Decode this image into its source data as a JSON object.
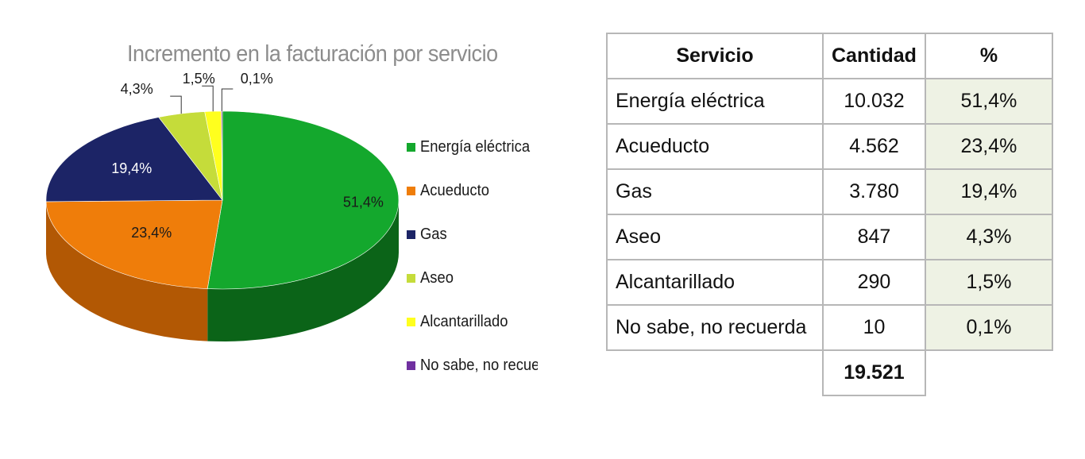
{
  "chart_data": {
    "type": "pie",
    "title": "Incremento en la facturación por servicio",
    "slices": [
      {
        "label": "Energía eléctrica",
        "value": 51.4,
        "data_label": "51,4%",
        "color": "#14a82d",
        "dark": "#0b6418"
      },
      {
        "label": "Acueducto",
        "value": 23.4,
        "data_label": "23,4%",
        "color": "#ef7d0a",
        "dark": "#b25804"
      },
      {
        "label": "Gas",
        "value": 19.4,
        "data_label": "19,4%",
        "color": "#1c2466",
        "dark": "#0e123a"
      },
      {
        "label": "Aseo",
        "value": 4.3,
        "data_label": "4,3%",
        "color": "#c5dc3a",
        "dark": "#8fa126"
      },
      {
        "label": "Alcantarillado",
        "value": 1.5,
        "data_label": "1,5%",
        "color": "#ffff1e",
        "dark": "#c7c700"
      },
      {
        "label": "No sabe, no recuerda",
        "value": 0.1,
        "data_label": "0,1%",
        "color": "#7030a0",
        "dark": "#4a1f6b"
      }
    ],
    "legend_position": "right"
  },
  "legend": {
    "items": [
      {
        "label": "Energía eléctrica",
        "color": "#14a82d"
      },
      {
        "label": "Acueducto",
        "color": "#ef7d0a"
      },
      {
        "label": "Gas",
        "color": "#1c2466"
      },
      {
        "label": "Aseo",
        "color": "#c5dc3a"
      },
      {
        "label": "Alcantarillado",
        "color": "#ffff1e"
      },
      {
        "label": "No sabe, no recuerda",
        "color": "#7030a0"
      }
    ]
  },
  "table": {
    "headers": {
      "servicio": "Servicio",
      "cantidad": "Cantidad",
      "pct": "%"
    },
    "rows": [
      {
        "servicio": "Energía eléctrica",
        "cantidad": "10.032",
        "pct": "51,4%"
      },
      {
        "servicio": "Acueducto",
        "cantidad": "4.562",
        "pct": "23,4%"
      },
      {
        "servicio": "Gas",
        "cantidad": "3.780",
        "pct": "19,4%"
      },
      {
        "servicio": "Aseo",
        "cantidad": "847",
        "pct": "4,3%"
      },
      {
        "servicio": "Alcantarillado",
        "cantidad": "290",
        "pct": "1,5%"
      },
      {
        "servicio": "No sabe, no recuerda",
        "cantidad": "10",
        "pct": "0,1%"
      }
    ],
    "total": "19.521"
  }
}
